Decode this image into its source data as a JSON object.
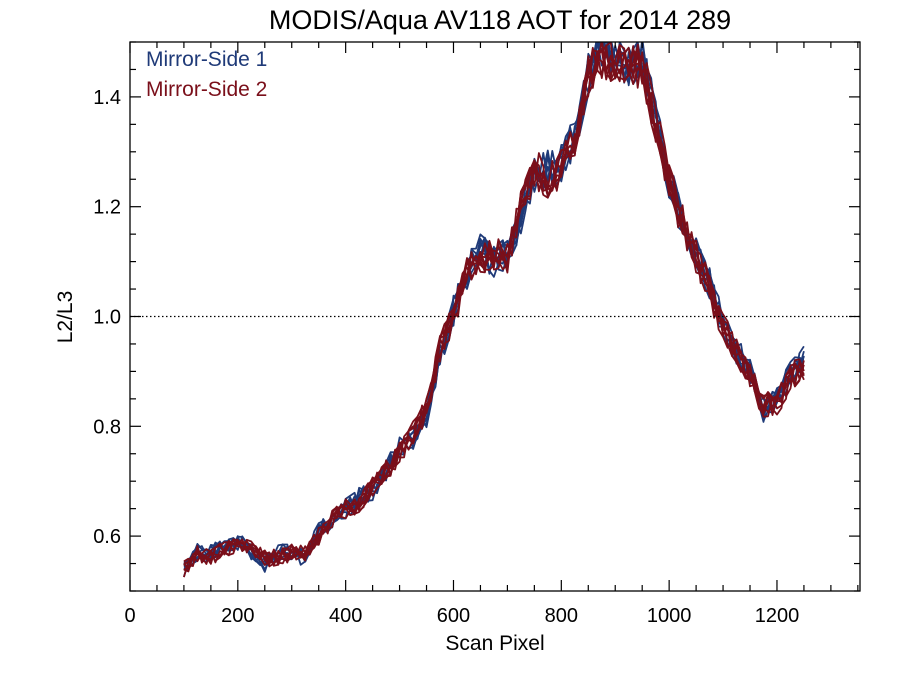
{
  "chart_data": {
    "type": "line",
    "title": "MODIS/Aqua AV118 AOT for 2014 289",
    "xlabel": "Scan Pixel",
    "ylabel": "L2/L3",
    "xlim": [
      0,
      1354
    ],
    "ylim": [
      0.5,
      1.5
    ],
    "xticks": [
      "0",
      "200",
      "400",
      "600",
      "800",
      "1000",
      "1200"
    ],
    "yticks": [
      "0.6",
      "0.8",
      "1.0",
      "1.2",
      "1.4"
    ],
    "reference_line": {
      "y": 1.0,
      "style": "dotted"
    },
    "legend_position": "top-left",
    "x": [
      100,
      125,
      150,
      175,
      200,
      225,
      250,
      275,
      300,
      325,
      350,
      375,
      400,
      425,
      450,
      475,
      500,
      525,
      550,
      575,
      600,
      625,
      650,
      675,
      700,
      725,
      750,
      775,
      800,
      825,
      850,
      875,
      900,
      925,
      950,
      975,
      1000,
      1025,
      1050,
      1075,
      1100,
      1125,
      1150,
      1175,
      1200,
      1225,
      1250
    ],
    "series": [
      {
        "name": "Mirror-Side 1",
        "color": "#1f3a78",
        "values": [
          0.54,
          0.57,
          0.57,
          0.58,
          0.59,
          0.57,
          0.55,
          0.57,
          0.57,
          0.56,
          0.61,
          0.63,
          0.65,
          0.67,
          0.68,
          0.72,
          0.76,
          0.78,
          0.82,
          0.93,
          1.01,
          1.08,
          1.12,
          1.1,
          1.12,
          1.18,
          1.26,
          1.27,
          1.28,
          1.33,
          1.44,
          1.49,
          1.47,
          1.46,
          1.47,
          1.36,
          1.25,
          1.17,
          1.12,
          1.06,
          0.98,
          0.94,
          0.9,
          0.83,
          0.85,
          0.9,
          0.92
        ]
      },
      {
        "name": "Mirror-Side 2",
        "color": "#7a0f1a",
        "values": [
          0.54,
          0.57,
          0.56,
          0.58,
          0.58,
          0.58,
          0.56,
          0.56,
          0.57,
          0.57,
          0.6,
          0.63,
          0.65,
          0.66,
          0.69,
          0.72,
          0.75,
          0.79,
          0.83,
          0.94,
          1.0,
          1.08,
          1.11,
          1.11,
          1.11,
          1.2,
          1.27,
          1.25,
          1.27,
          1.32,
          1.44,
          1.47,
          1.46,
          1.45,
          1.46,
          1.35,
          1.25,
          1.17,
          1.11,
          1.05,
          0.98,
          0.94,
          0.89,
          0.84,
          0.84,
          0.89,
          0.91
        ]
      }
    ]
  }
}
